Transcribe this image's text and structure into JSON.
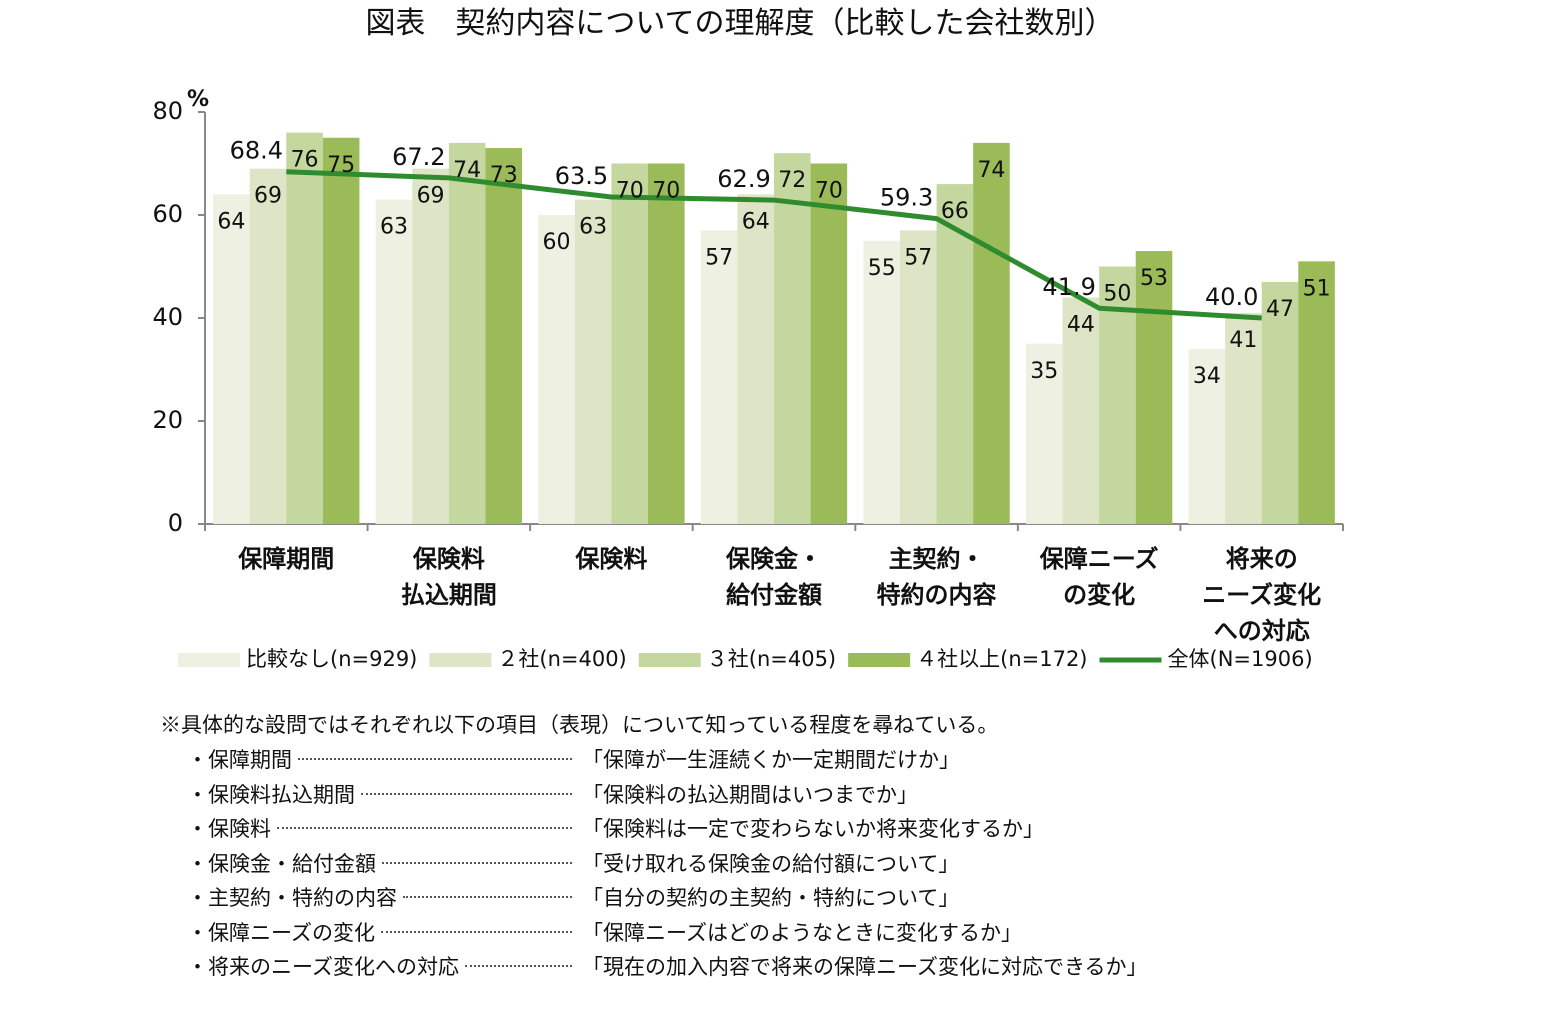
{
  "chart_data": {
    "type": "bar_line",
    "title": "図表　契約内容についての理解度（比較した会社数別）",
    "y_label": "%",
    "categories": [
      "保障期間",
      "保険料\n払込期間",
      "保険料",
      "保険金・\n給付金額",
      "主契約・\n特約の内容",
      "保障ニーズ\nの変化",
      "将来の\nニーズ変化\nへの対応"
    ],
    "ylim": [
      0,
      80
    ],
    "yticks": [
      0,
      20,
      40,
      60,
      80
    ],
    "legend": "bottom",
    "series": [
      {
        "name": "比較なし(n=929)",
        "type": "bar",
        "color": "#eef0e2",
        "values": [
          64,
          63,
          60,
          57,
          55,
          35,
          34
        ]
      },
      {
        "name": "２社(n=400)",
        "type": "bar",
        "color": "#dde5c6",
        "values": [
          69,
          69,
          63,
          64,
          57,
          44,
          41
        ]
      },
      {
        "name": "３社(n=405)",
        "type": "bar",
        "color": "#c4d79f",
        "values": [
          76,
          74,
          70,
          72,
          66,
          50,
          47
        ]
      },
      {
        "name": "４社以上(n=172)",
        "type": "bar",
        "color": "#9bbb59",
        "values": [
          75,
          73,
          70,
          70,
          74,
          53,
          51
        ]
      },
      {
        "name": "全体(N=1906)",
        "type": "line",
        "color": "#2e8b2e",
        "values": [
          68.4,
          67.2,
          63.5,
          62.9,
          59.3,
          41.9,
          40.0
        ],
        "value_labels": [
          "68.4",
          "67.2",
          "63.5",
          "62.9",
          "59.3",
          "41.9",
          "40.0"
        ]
      }
    ]
  },
  "notes": {
    "heading": "※具体的な設問ではそれぞれ以下の項目（表現）について知っている程度を尋ねている。",
    "items": [
      {
        "term": "・保障期間",
        "question": "「保障が一生涯続くか一定期間だけか」"
      },
      {
        "term": "・保険料払込期間",
        "question": "「保険料の払込期間はいつまでか」"
      },
      {
        "term": "・保険料",
        "question": "「保険料は一定で変わらないか将来変化するか」"
      },
      {
        "term": "・保険金・給付金額",
        "question": "「受け取れる保険金の給付額について」"
      },
      {
        "term": "・主契約・特約の内容",
        "question": "「自分の契約の主契約・特約について」"
      },
      {
        "term": "・保障ニーズの変化",
        "question": "「保障ニーズはどのようなときに変化するか」"
      },
      {
        "term": "・将来のニーズ変化への対応",
        "question": "「現在の加入内容で将来の保障ニーズ変化に対応できるか」"
      }
    ]
  }
}
